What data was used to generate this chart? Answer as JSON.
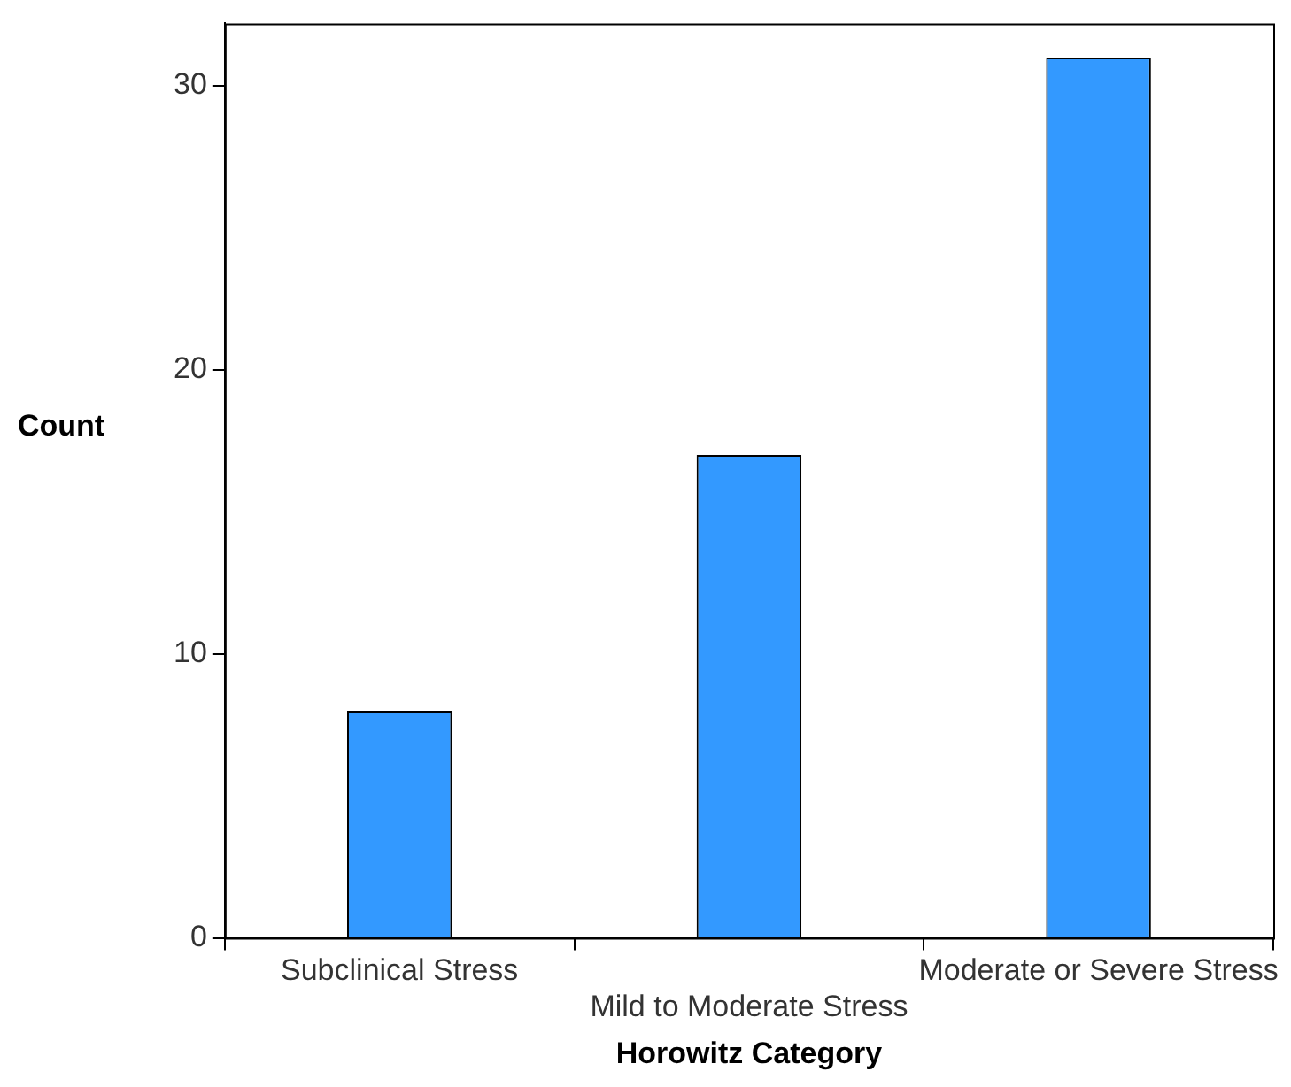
{
  "chart_data": {
    "type": "bar",
    "xlabel": "Horowitz Category",
    "ylabel": "Count",
    "categories": [
      "Subclinical Stress",
      "Mild to Moderate Stress",
      "Moderate or Severe Stress"
    ],
    "values": [
      8,
      17,
      31
    ],
    "color": "#3399ff",
    "ylim": [
      0,
      32.2
    ],
    "yticks": [
      0,
      10,
      20,
      30
    ]
  }
}
